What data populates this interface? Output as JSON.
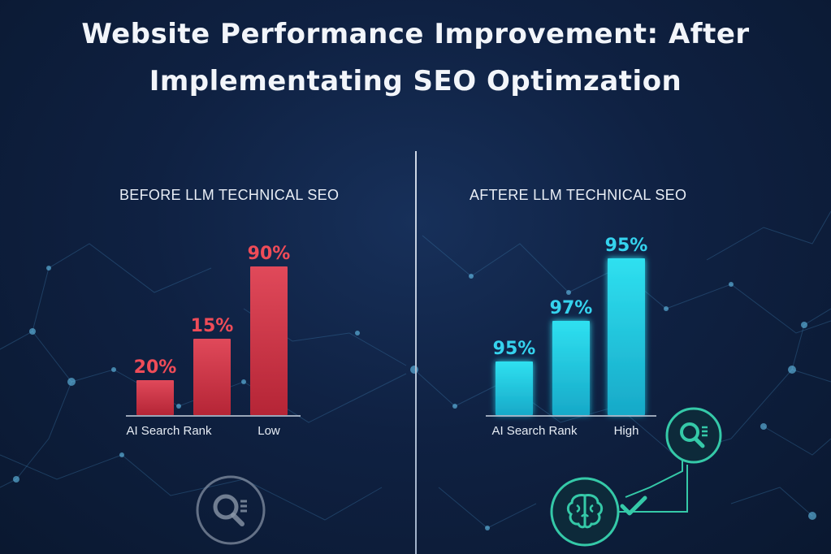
{
  "page": {
    "title_line1": "Website Performance Improvement: After",
    "title_line2": "Implementating SEO Optimzation"
  },
  "colors": {
    "before_bar_top": "#e0495a",
    "before_bar_bottom": "#b52536",
    "before_label": "#ef4c58",
    "after_bar_top": "#2fe0f0",
    "after_bar_bottom": "#17a9c8",
    "after_label": "#35d3ee",
    "icon_teal": "#35c9a8",
    "icon_gray": "#8a96a8"
  },
  "icons": [
    "search-document-icon",
    "brain-icon",
    "checkmark-icon"
  ],
  "chart_data": [
    {
      "type": "bar",
      "title": "BEFORE LLM TECHNICAL SEO",
      "categories": [
        "",
        "",
        ""
      ],
      "values": [
        20,
        15,
        90
      ],
      "data_labels": [
        "20%",
        "15%",
        "90%"
      ],
      "xtick_labels": [
        "AI Search Rank",
        "Low"
      ],
      "ylim": [
        0,
        100
      ],
      "grid": false
    },
    {
      "type": "bar",
      "title": "AFTERE LLM TECHNICAL SEO",
      "categories": [
        "",
        "",
        ""
      ],
      "values": [
        95,
        97,
        95
      ],
      "data_labels": [
        "95%",
        "97%",
        "95%"
      ],
      "xtick_labels": [
        "AI Search Rank",
        "High"
      ],
      "grid": false
    }
  ]
}
